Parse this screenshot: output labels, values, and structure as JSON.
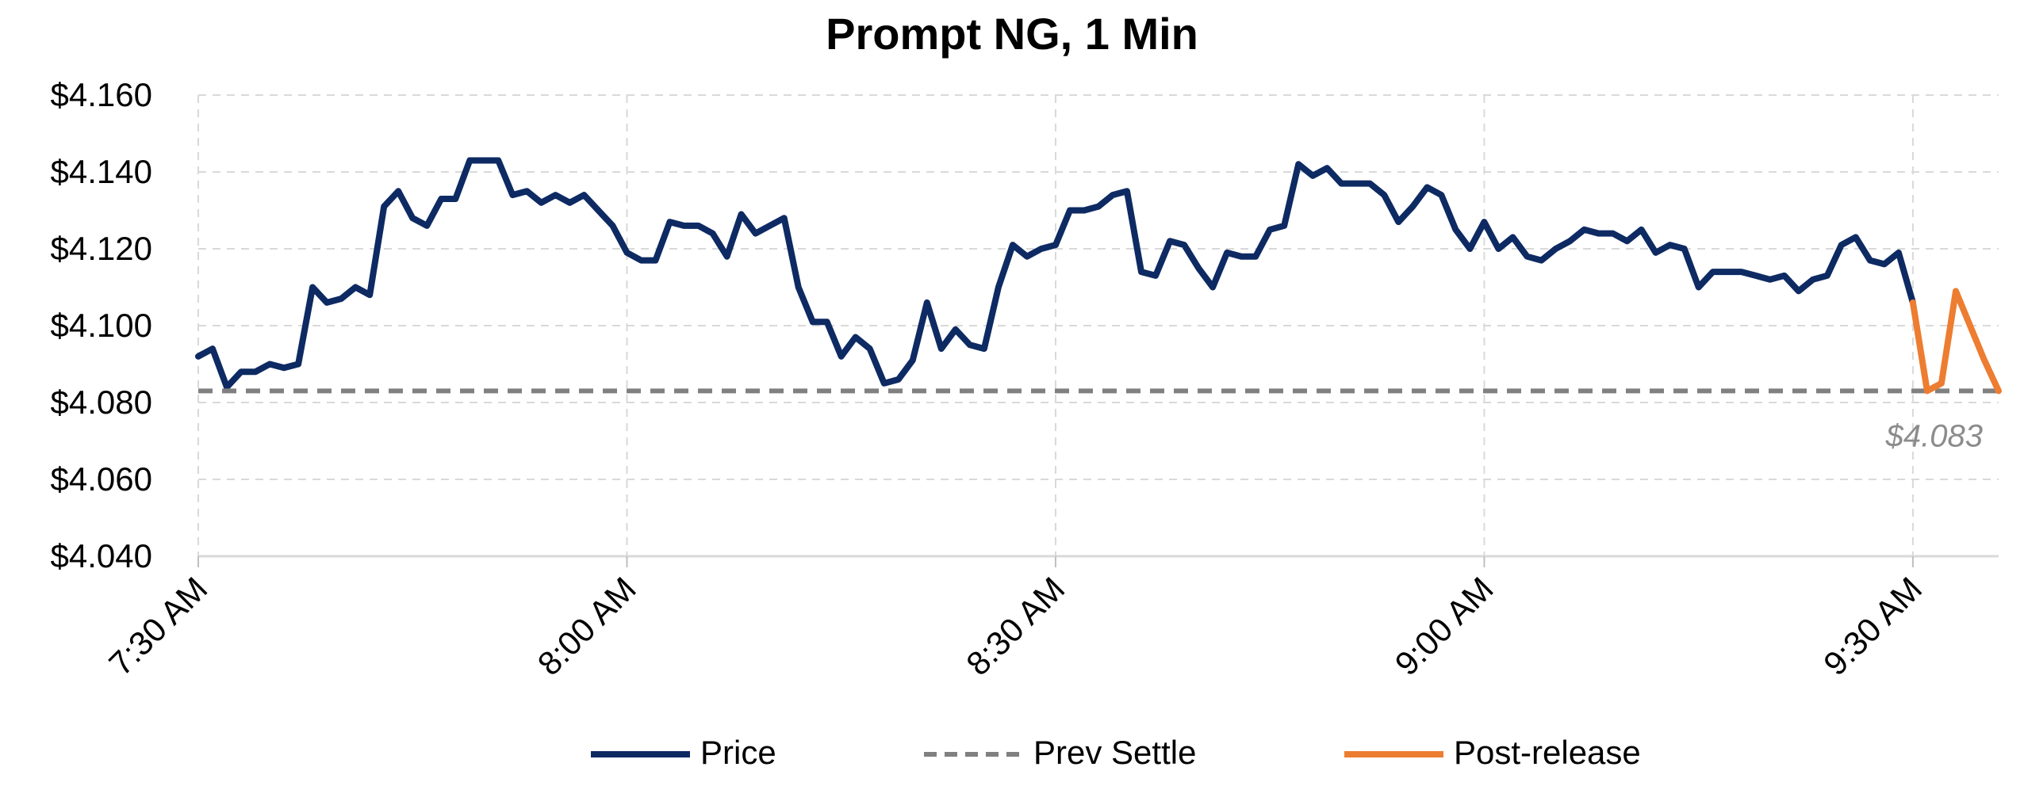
{
  "chart_data": {
    "type": "line",
    "title": "Prompt NG, 1 Min",
    "xlabel": "",
    "ylabel": "",
    "x_ticks": [
      "7:30 AM",
      "8:00 AM",
      "8:30 AM",
      "9:00 AM",
      "9:30 AM"
    ],
    "y_ticks": [
      "$4.040",
      "$4.060",
      "$4.080",
      "$4.100",
      "$4.120",
      "$4.140",
      "$4.160"
    ],
    "ylim": [
      4.04,
      4.16
    ],
    "xlim_minutes_after_7_30": [
      0,
      126
    ],
    "grid": "dashed",
    "legend_position": "bottom",
    "series": [
      {
        "name": "Price",
        "color": "#0e2a63",
        "style": "solid",
        "x": [
          "7:30",
          "7:31",
          "7:32",
          "7:33",
          "7:34",
          "7:35",
          "7:36",
          "7:37",
          "7:38",
          "7:39",
          "7:40",
          "7:41",
          "7:42",
          "7:43",
          "7:44",
          "7:45",
          "7:46",
          "7:47",
          "7:48",
          "7:49",
          "7:50",
          "7:51",
          "7:52",
          "7:53",
          "7:54",
          "7:55",
          "7:56",
          "7:57",
          "7:58",
          "7:59",
          "8:00",
          "8:01",
          "8:02",
          "8:03",
          "8:04",
          "8:05",
          "8:06",
          "8:07",
          "8:08",
          "8:09",
          "8:10",
          "8:11",
          "8:12",
          "8:13",
          "8:14",
          "8:15",
          "8:16",
          "8:17",
          "8:18",
          "8:19",
          "8:20",
          "8:21",
          "8:22",
          "8:23",
          "8:24",
          "8:25",
          "8:26",
          "8:27",
          "8:28",
          "8:29",
          "8:30",
          "8:31",
          "8:32",
          "8:33",
          "8:34",
          "8:35",
          "8:36",
          "8:37",
          "8:38",
          "8:39",
          "8:40",
          "8:41",
          "8:42",
          "8:43",
          "8:44",
          "8:45",
          "8:46",
          "8:47",
          "8:48",
          "8:49",
          "8:50",
          "8:51",
          "8:52",
          "8:53",
          "8:54",
          "8:55",
          "8:56",
          "8:57",
          "8:58",
          "8:59",
          "9:00",
          "9:01",
          "9:02",
          "9:03",
          "9:04",
          "9:05",
          "9:06",
          "9:07",
          "9:08",
          "9:09",
          "9:10",
          "9:11",
          "9:12",
          "9:13",
          "9:14",
          "9:15",
          "9:16",
          "9:17",
          "9:18",
          "9:19",
          "9:20",
          "9:21",
          "9:22",
          "9:23",
          "9:24",
          "9:25",
          "9:26",
          "9:27",
          "9:28",
          "9:29",
          "9:30"
        ],
        "values": [
          4.092,
          4.094,
          4.084,
          4.088,
          4.088,
          4.09,
          4.089,
          4.09,
          4.11,
          4.106,
          4.107,
          4.11,
          4.108,
          4.131,
          4.135,
          4.128,
          4.126,
          4.133,
          4.133,
          4.143,
          4.143,
          4.143,
          4.134,
          4.135,
          4.132,
          4.134,
          4.132,
          4.134,
          4.13,
          4.126,
          4.119,
          4.117,
          4.117,
          4.127,
          4.126,
          4.126,
          4.124,
          4.118,
          4.129,
          4.124,
          4.126,
          4.128,
          4.11,
          4.101,
          4.101,
          4.092,
          4.097,
          4.094,
          4.085,
          4.086,
          4.091,
          4.106,
          4.094,
          4.099,
          4.095,
          4.094,
          4.11,
          4.121,
          4.118,
          4.12,
          4.121,
          4.13,
          4.13,
          4.131,
          4.134,
          4.135,
          4.114,
          4.113,
          4.122,
          4.121,
          4.115,
          4.11,
          4.119,
          4.118,
          4.118,
          4.125,
          4.126,
          4.142,
          4.139,
          4.141,
          4.137,
          4.137,
          4.137,
          4.134,
          4.127,
          4.131,
          4.136,
          4.134,
          4.125,
          4.12,
          4.127,
          4.12,
          4.123,
          4.118,
          4.117,
          4.12,
          4.122,
          4.125,
          4.124,
          4.124,
          4.122,
          4.125,
          4.119,
          4.121,
          4.12,
          4.11,
          4.114,
          4.114,
          4.114,
          4.113,
          4.112,
          4.113,
          4.109,
          4.112,
          4.113,
          4.121,
          4.123,
          4.117,
          4.116,
          4.119,
          4.106
        ]
      },
      {
        "name": "Prev Settle",
        "color": "#808080",
        "style": "dashed",
        "x": [
          "7:30",
          "9:36"
        ],
        "values": [
          4.083,
          4.083
        ]
      },
      {
        "name": "Post-release",
        "color": "#ed7d31",
        "style": "solid",
        "x": [
          "9:30",
          "9:31",
          "9:32",
          "9:33",
          "9:34",
          "9:35",
          "9:36"
        ],
        "values": [
          4.106,
          4.083,
          4.085,
          4.109,
          4.1,
          4.091,
          4.083
        ]
      }
    ],
    "annotations": [
      {
        "text": "$4.083",
        "anchor_value": 4.083
      }
    ]
  }
}
